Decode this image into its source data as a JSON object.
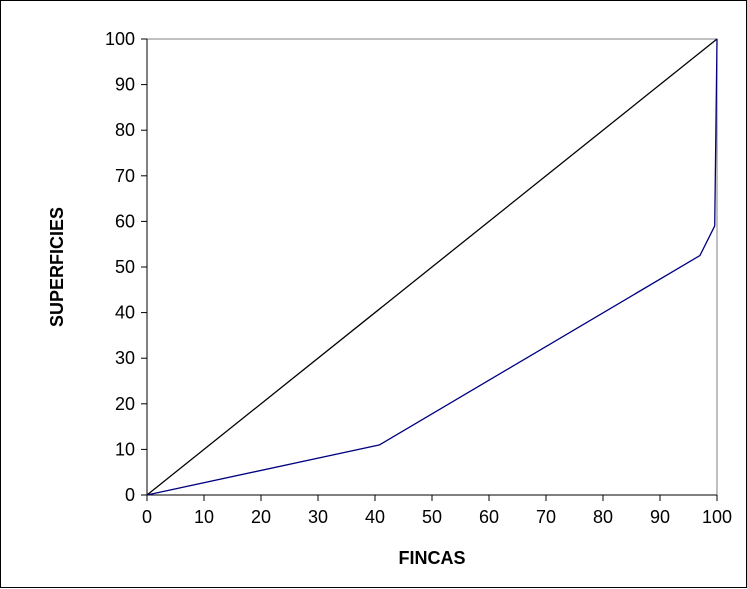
{
  "chart_data": {
    "type": "line",
    "title": "",
    "xlabel": "FINCAS",
    "ylabel": "SUPERFICIES",
    "xlim": [
      0,
      100
    ],
    "ylim": [
      0,
      100
    ],
    "xticks": [
      "0",
      "10",
      "20",
      "30",
      "40",
      "50",
      "60",
      "70",
      "80",
      "90",
      "100"
    ],
    "yticks": [
      "0",
      "10",
      "20",
      "30",
      "40",
      "50",
      "60",
      "70",
      "80",
      "90",
      "100"
    ],
    "grid": false,
    "legend": "none",
    "series": [
      {
        "x": [
          0,
          100
        ],
        "y": [
          0,
          100
        ],
        "color": "#000000"
      },
      {
        "x": [
          0,
          40.8,
          97,
          99.6,
          100
        ],
        "y": [
          0,
          11,
          52.5,
          59,
          100
        ],
        "color": "#000080"
      }
    ]
  }
}
